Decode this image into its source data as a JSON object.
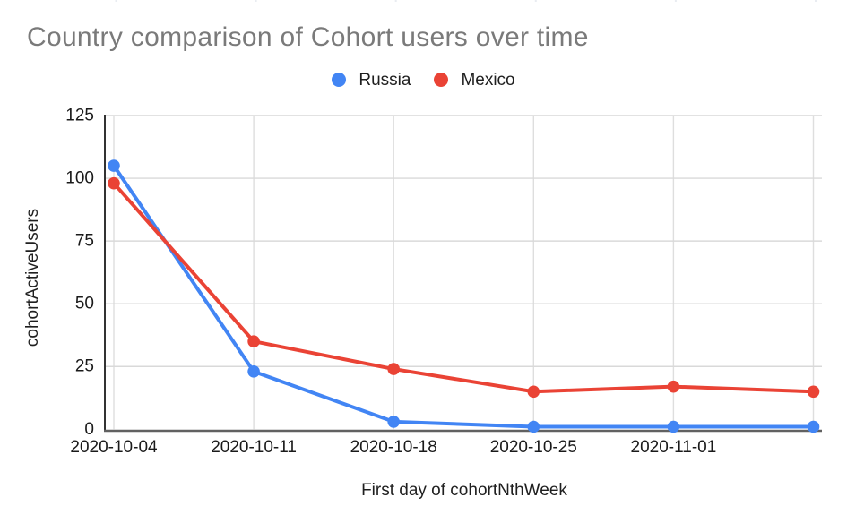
{
  "chart": {
    "title": "Country comparison of Cohort users over time",
    "legend": [
      {
        "label": "Russia",
        "color": "#4285F4"
      },
      {
        "label": "Mexico",
        "color": "#EA4335"
      }
    ],
    "x_axis": {
      "title": "First day of cohortNthWeek"
    },
    "y_axis": {
      "title": "cohortActiveUsers"
    }
  },
  "chart_data": {
    "type": "line",
    "title": "Country comparison of Cohort users over time",
    "xlabel": "First day of cohortNthWeek",
    "ylabel": "cohortActiveUsers",
    "categories": [
      "2020-10-04",
      "2020-10-11",
      "2020-10-18",
      "2020-10-25",
      "2020-11-01",
      ""
    ],
    "series": [
      {
        "name": "Russia",
        "color": "#4285F4",
        "values": [
          105,
          23,
          3,
          1,
          1,
          1
        ]
      },
      {
        "name": "Mexico",
        "color": "#EA4335",
        "values": [
          98,
          35,
          24,
          15,
          17,
          15
        ]
      }
    ],
    "ylim": [
      0,
      125
    ],
    "y_ticks": [
      0,
      25,
      50,
      75,
      100,
      125
    ],
    "grid": true,
    "legend_position": "top",
    "marker": "circle",
    "background": "#ffffff",
    "title_color": "#7a7a7a",
    "gridline_color": "#d9d9d9",
    "axis_label_color": "#1a1a1a"
  }
}
